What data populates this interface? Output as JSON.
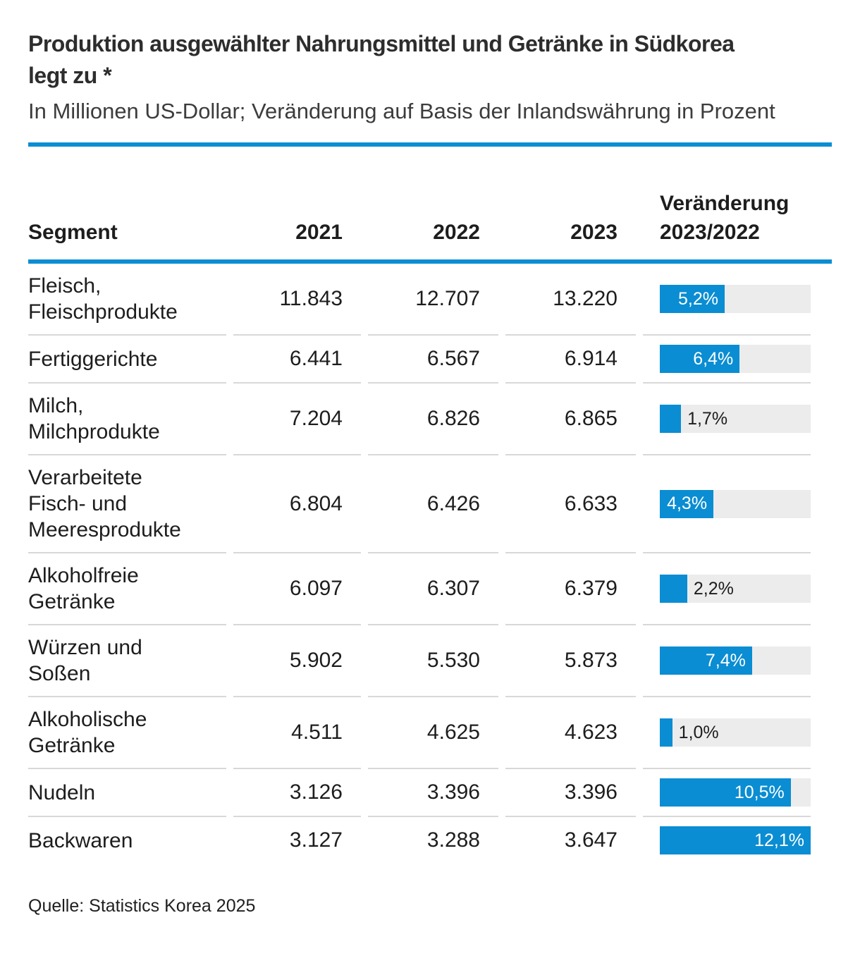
{
  "header": {
    "title_line1": "Produktion ausgewählter Nahrungsmittel und Getränke in Südkorea",
    "title_line2": "legt zu *",
    "subtitle": "In Millionen US-Dollar; Veränderung auf Basis der Inlandswährung in Prozent"
  },
  "table": {
    "col_segment": "Segment",
    "col_2021": "2021",
    "col_2022": "2022",
    "col_2023": "2023",
    "col_change": [
      "Veränderung",
      "2023/2022"
    ],
    "bar_max_pct": 12.1,
    "rows": [
      {
        "segment_lines": [
          "Fleisch,",
          "Fleischprodukte"
        ],
        "y2021": "11.843",
        "y2022": "12.707",
        "y2023": "13.220",
        "change_label": "5,2%",
        "change_pct": 5.2
      },
      {
        "segment_lines": [
          "Fertiggerichte"
        ],
        "y2021": "6.441",
        "y2022": "6.567",
        "y2023": "6.914",
        "change_label": "6,4%",
        "change_pct": 6.4
      },
      {
        "segment_lines": [
          "Milch,",
          "Milchprodukte"
        ],
        "y2021": "7.204",
        "y2022": "6.826",
        "y2023": "6.865",
        "change_label": "1,7%",
        "change_pct": 1.7
      },
      {
        "segment_lines": [
          "Verarbeitete",
          "Fisch- und",
          "Meeresprodukte"
        ],
        "y2021": "6.804",
        "y2022": "6.426",
        "y2023": "6.633",
        "change_label": "4,3%",
        "change_pct": 4.3
      },
      {
        "segment_lines": [
          "Alkoholfreie",
          "Getränke"
        ],
        "y2021": "6.097",
        "y2022": "6.307",
        "y2023": "6.379",
        "change_label": "2,2%",
        "change_pct": 2.2
      },
      {
        "segment_lines": [
          "Würzen und",
          "Soßen"
        ],
        "y2021": "5.902",
        "y2022": "5.530",
        "y2023": "5.873",
        "change_label": "7,4%",
        "change_pct": 7.4
      },
      {
        "segment_lines": [
          "Alkoholische",
          "Getränke"
        ],
        "y2021": "4.511",
        "y2022": "4.625",
        "y2023": "4.623",
        "change_label": "1,0%",
        "change_pct": 1.0
      },
      {
        "segment_lines": [
          "Nudeln"
        ],
        "y2021": "3.126",
        "y2022": "3.396",
        "y2023": "3.396",
        "change_label": "10,5%",
        "change_pct": 10.5
      },
      {
        "segment_lines": [
          "Backwaren"
        ],
        "y2021": "3.127",
        "y2022": "3.288",
        "y2023": "3.647",
        "change_label": "12,1%",
        "change_pct": 12.1
      }
    ]
  },
  "footer": {
    "source": "Quelle: Statistics Korea 2025"
  },
  "colors": {
    "accent_blue": "#0a8dd2",
    "bar_track": "#ececec",
    "separator": "#d8d8d8"
  },
  "chart_data": {
    "type": "bar",
    "title": "Produktion ausgewählter Nahrungsmittel und Getränke in Südkorea legt zu *",
    "subtitle": "In Millionen US-Dollar; Veränderung auf Basis der Inlandswährung in Prozent",
    "categories": [
      "Fleisch, Fleischprodukte",
      "Fertiggerichte",
      "Milch, Milchprodukte",
      "Verarbeitete Fisch- und Meeresprodukte",
      "Alkoholfreie Getränke",
      "Würzen und Soßen",
      "Alkoholische Getränke",
      "Nudeln",
      "Backwaren"
    ],
    "series": [
      {
        "name": "2021",
        "values": [
          11843,
          6441,
          7204,
          6804,
          6097,
          5902,
          4511,
          3126,
          3127
        ]
      },
      {
        "name": "2022",
        "values": [
          12707,
          6567,
          6826,
          6426,
          6307,
          5530,
          4625,
          3396,
          3288
        ]
      },
      {
        "name": "2023",
        "values": [
          13220,
          6914,
          6865,
          6633,
          6379,
          5873,
          4623,
          3396,
          3647
        ]
      },
      {
        "name": "Veränderung 2023/2022 (%)",
        "values": [
          5.2,
          6.4,
          1.7,
          4.3,
          2.2,
          7.4,
          1.0,
          10.5,
          12.1
        ]
      }
    ],
    "bar_axis": {
      "min": 0,
      "max": 12.1,
      "unit": "%"
    },
    "orientation": "horizontal",
    "source": "Quelle: Statistics Korea 2025"
  }
}
